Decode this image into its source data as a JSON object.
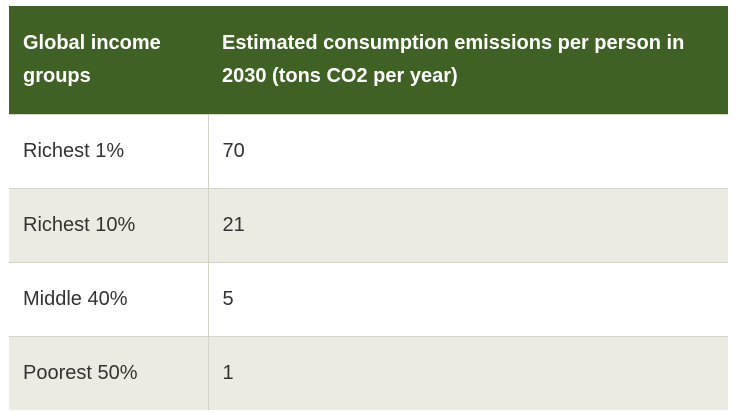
{
  "chart_data": {
    "type": "table",
    "columns": [
      "Global income groups",
      "Estimated consumption emissions per person in 2030 (tons CO2 per year)"
    ],
    "rows": [
      {
        "group": "Richest 1%",
        "value": "70"
      },
      {
        "group": "Richest 10%",
        "value": "21"
      },
      {
        "group": "Middle 40%",
        "value": "5"
      },
      {
        "group": "Poorest 50%",
        "value": "1"
      }
    ],
    "colors": {
      "header_bg": "#3f6224",
      "header_text": "#ffffff",
      "stripe_bg": "#ebebe1",
      "border": "#d2d4c8"
    }
  }
}
